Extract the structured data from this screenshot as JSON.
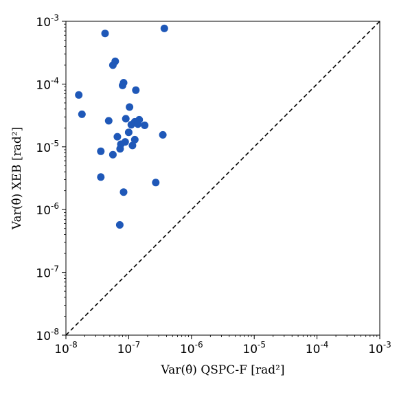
{
  "chart_data": {
    "type": "scatter",
    "xlabel": "Var(θ̂) QSPC-F [rad²]",
    "ylabel": "Var(θ̂) XEB [rad²]",
    "xscale": "log",
    "yscale": "log",
    "xlim": [
      1e-08,
      0.001
    ],
    "ylim": [
      1e-08,
      0.001
    ],
    "grid": false,
    "legend": "none",
    "marker_color": "#1f58b8",
    "reference_line": {
      "style": "dashed",
      "color": "#000000",
      "from": [
        1e-08,
        1e-08
      ],
      "to": [
        0.001,
        0.001
      ]
    },
    "x_ticks": [
      {
        "base": "10",
        "exp": "-8"
      },
      {
        "base": "10",
        "exp": "-7"
      },
      {
        "base": "10",
        "exp": "-6"
      },
      {
        "base": "10",
        "exp": "-5"
      },
      {
        "base": "10",
        "exp": "-4"
      },
      {
        "base": "10",
        "exp": "-3"
      }
    ],
    "y_ticks": [
      {
        "base": "10",
        "exp": "-8"
      },
      {
        "base": "10",
        "exp": "-7"
      },
      {
        "base": "10",
        "exp": "-6"
      },
      {
        "base": "10",
        "exp": "-5"
      },
      {
        "base": "10",
        "exp": "-4"
      },
      {
        "base": "10",
        "exp": "-3"
      }
    ],
    "points": [
      {
        "x": 4.2e-08,
        "y": 0.00064
      },
      {
        "x": 3.7e-07,
        "y": 0.00077
      },
      {
        "x": 6.1e-08,
        "y": 0.00023
      },
      {
        "x": 5.6e-08,
        "y": 0.0002
      },
      {
        "x": 8.3e-08,
        "y": 0.000105
      },
      {
        "x": 8e-08,
        "y": 9.5e-05
      },
      {
        "x": 1.3e-07,
        "y": 8e-05
      },
      {
        "x": 1.6e-08,
        "y": 6.7e-05
      },
      {
        "x": 1.03e-07,
        "y": 4.3e-05
      },
      {
        "x": 1.8e-08,
        "y": 3.3e-05
      },
      {
        "x": 9e-08,
        "y": 2.8e-05
      },
      {
        "x": 4.8e-08,
        "y": 2.6e-05
      },
      {
        "x": 1.47e-07,
        "y": 2.7e-05
      },
      {
        "x": 1.25e-07,
        "y": 2.5e-05
      },
      {
        "x": 1.1e-07,
        "y": 2.25e-05
      },
      {
        "x": 1.4e-07,
        "y": 2.3e-05
      },
      {
        "x": 1.8e-07,
        "y": 2.2e-05
      },
      {
        "x": 1e-07,
        "y": 1.7e-05
      },
      {
        "x": 3.5e-07,
        "y": 1.55e-05
      },
      {
        "x": 6.6e-08,
        "y": 1.45e-05
      },
      {
        "x": 1.25e-07,
        "y": 1.3e-05
      },
      {
        "x": 8.8e-08,
        "y": 1.2e-05
      },
      {
        "x": 7.5e-08,
        "y": 1.1e-05
      },
      {
        "x": 1.15e-07,
        "y": 1.05e-05
      },
      {
        "x": 7.3e-08,
        "y": 9.3e-06
      },
      {
        "x": 3.6e-08,
        "y": 8.5e-06
      },
      {
        "x": 5.6e-08,
        "y": 7.5e-06
      },
      {
        "x": 3.6e-08,
        "y": 3.3e-06
      },
      {
        "x": 2.7e-07,
        "y": 2.7e-06
      },
      {
        "x": 8.3e-08,
        "y": 1.9e-06
      },
      {
        "x": 7.2e-08,
        "y": 5.7e-07
      }
    ]
  }
}
